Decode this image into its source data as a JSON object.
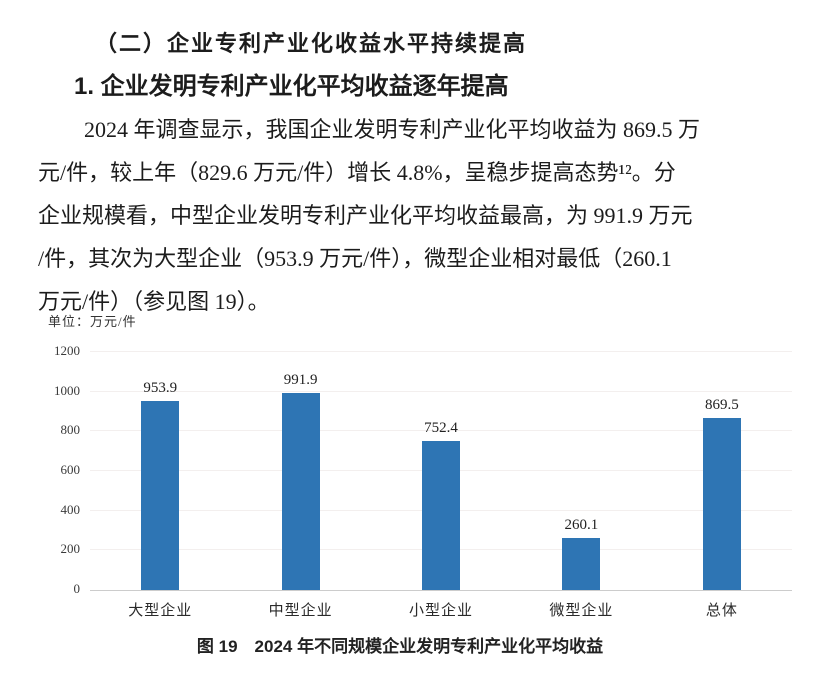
{
  "document": {
    "section_heading": "（二）企业专利产业化收益水平持续提高",
    "sub_heading": "1. 企业发明专利产业化平均收益逐年提高",
    "paragraph_lines": [
      "2024 年调查显示，我国企业发明专利产业化平均收益为 869.5 万",
      "元/件，较上年（829.6 万元/件）增长 4.8%，呈稳步提高态势¹²。分",
      "企业规模看，中型企业发明专利产业化平均收益最高，为 991.9 万元",
      "/件，其次为大型企业（953.9 万元/件），微型企业相对最低（260.1",
      "万元/件）（参见图 19）。"
    ],
    "figure_caption": "图 19　2024 年不同规模企业发明专利产业化平均收益"
  },
  "chart_data": {
    "type": "bar",
    "title": "图 19 2024 年不同规模企业发明专利产业化平均收益",
    "unit_label": "单位：万元/件",
    "categories": [
      "大型企业",
      "中型企业",
      "小型企业",
      "微型企业",
      "总体"
    ],
    "values": [
      953.9,
      991.9,
      752.4,
      260.1,
      869.5
    ],
    "xlabel": "",
    "ylabel": "万元/件",
    "ylim": [
      0,
      1200
    ],
    "yticks": [
      0,
      200,
      400,
      600,
      800,
      1000,
      1200
    ],
    "bar_color": "#2e75b4",
    "grid": true,
    "legend": "none"
  }
}
